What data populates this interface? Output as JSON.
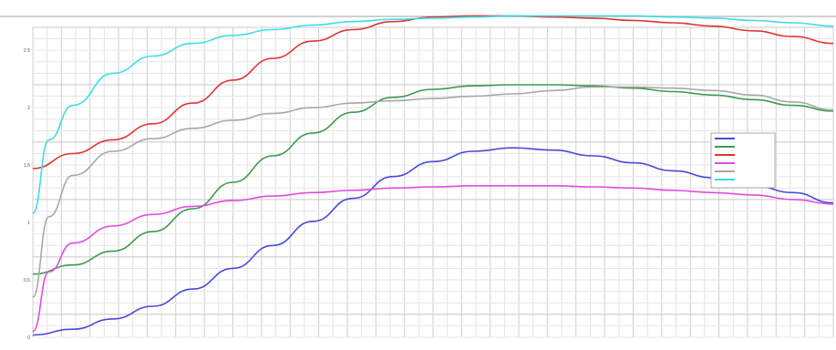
{
  "chart_data": {
    "type": "line",
    "title": "",
    "xlabel": "",
    "ylabel": "",
    "xlim": [
      0,
      1
    ],
    "ylim": [
      0,
      2.7
    ],
    "grid": true,
    "legend_position": "right",
    "y_ticks": [
      "0",
      "0.5",
      "1",
      "1.5",
      "2",
      "2.5"
    ],
    "x_ticks": [],
    "series": [
      {
        "name": "",
        "color": "#4a4ad6",
        "x": [
          0,
          0.05,
          0.1,
          0.15,
          0.2,
          0.25,
          0.3,
          0.35,
          0.4,
          0.45,
          0.5,
          0.55,
          0.6,
          0.65,
          0.7,
          0.75,
          0.8,
          0.85,
          0.9,
          0.95,
          1.0
        ],
        "y": [
          0.02,
          0.07,
          0.16,
          0.27,
          0.42,
          0.6,
          0.8,
          1.01,
          1.21,
          1.4,
          1.53,
          1.62,
          1.65,
          1.63,
          1.58,
          1.52,
          1.45,
          1.39,
          1.32,
          1.26,
          1.17
        ]
      },
      {
        "name": "",
        "color": "#3f9a4f",
        "x": [
          0,
          0.05,
          0.1,
          0.15,
          0.2,
          0.25,
          0.3,
          0.35,
          0.4,
          0.45,
          0.5,
          0.55,
          0.6,
          0.65,
          0.7,
          0.75,
          0.8,
          0.85,
          0.9,
          0.95,
          1.0
        ],
        "y": [
          0.55,
          0.63,
          0.75,
          0.92,
          1.12,
          1.35,
          1.58,
          1.78,
          1.96,
          2.09,
          2.16,
          2.19,
          2.2,
          2.2,
          2.19,
          2.17,
          2.14,
          2.11,
          2.07,
          2.02,
          1.97
        ]
      },
      {
        "name": "",
        "color": "#e03535",
        "x": [
          0,
          0.05,
          0.1,
          0.15,
          0.2,
          0.25,
          0.3,
          0.35,
          0.4,
          0.45,
          0.5,
          0.55,
          0.6,
          0.65,
          0.7,
          0.75,
          0.8,
          0.85,
          0.9,
          0.95,
          1.0
        ],
        "y": [
          1.47,
          1.6,
          1.72,
          1.86,
          2.04,
          2.24,
          2.43,
          2.58,
          2.68,
          2.75,
          2.79,
          2.8,
          2.8,
          2.79,
          2.78,
          2.76,
          2.74,
          2.71,
          2.67,
          2.62,
          2.56
        ]
      },
      {
        "name": "",
        "color": "#e04de0",
        "x": [
          0,
          0.02,
          0.05,
          0.1,
          0.15,
          0.2,
          0.25,
          0.3,
          0.35,
          0.4,
          0.45,
          0.5,
          0.55,
          0.6,
          0.65,
          0.7,
          0.75,
          0.8,
          0.85,
          0.9,
          0.95,
          1.0
        ],
        "y": [
          0.05,
          0.57,
          0.82,
          0.97,
          1.07,
          1.14,
          1.19,
          1.23,
          1.26,
          1.28,
          1.3,
          1.31,
          1.32,
          1.32,
          1.32,
          1.31,
          1.3,
          1.28,
          1.26,
          1.24,
          1.2,
          1.16
        ]
      },
      {
        "name": "",
        "color": "#a8a8a8",
        "x": [
          0,
          0.02,
          0.05,
          0.1,
          0.15,
          0.2,
          0.25,
          0.3,
          0.35,
          0.4,
          0.45,
          0.5,
          0.55,
          0.6,
          0.65,
          0.7,
          0.75,
          0.8,
          0.85,
          0.9,
          0.95,
          1.0
        ],
        "y": [
          0.35,
          1.05,
          1.41,
          1.62,
          1.73,
          1.82,
          1.89,
          1.95,
          2.0,
          2.04,
          2.06,
          2.08,
          2.1,
          2.12,
          2.15,
          2.18,
          2.18,
          2.17,
          2.15,
          2.11,
          2.05,
          1.98
        ]
      },
      {
        "name": "",
        "color": "#3ddde8",
        "x": [
          0,
          0.02,
          0.05,
          0.1,
          0.15,
          0.2,
          0.25,
          0.3,
          0.35,
          0.4,
          0.45,
          0.5,
          0.55,
          0.6,
          0.65,
          0.7,
          0.75,
          0.8,
          0.85,
          0.9,
          0.95,
          1.0
        ],
        "y": [
          1.08,
          1.72,
          2.02,
          2.3,
          2.45,
          2.56,
          2.63,
          2.68,
          2.72,
          2.75,
          2.77,
          2.78,
          2.79,
          2.8,
          2.8,
          2.8,
          2.8,
          2.79,
          2.78,
          2.76,
          2.74,
          2.71
        ]
      }
    ]
  }
}
